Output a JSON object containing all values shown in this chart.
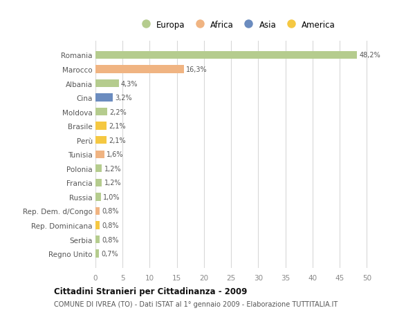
{
  "countries": [
    "Romania",
    "Marocco",
    "Albania",
    "Cina",
    "Moldova",
    "Brasile",
    "Perù",
    "Tunisia",
    "Polonia",
    "Francia",
    "Russia",
    "Rep. Dem. d/Congo",
    "Rep. Dominicana",
    "Serbia",
    "Regno Unito"
  ],
  "values": [
    48.2,
    16.3,
    4.3,
    3.2,
    2.2,
    2.1,
    2.1,
    1.6,
    1.2,
    1.2,
    1.0,
    0.8,
    0.8,
    0.8,
    0.7
  ],
  "labels": [
    "48,2%",
    "16,3%",
    "4,3%",
    "3,2%",
    "2,2%",
    "2,1%",
    "2,1%",
    "1,6%",
    "1,2%",
    "1,2%",
    "1,0%",
    "0,8%",
    "0,8%",
    "0,8%",
    "0,7%"
  ],
  "colors": [
    "#b5cc8e",
    "#f0b482",
    "#b5cc8e",
    "#6b8cbf",
    "#b5cc8e",
    "#f5c842",
    "#f5c842",
    "#f0b482",
    "#b5cc8e",
    "#b5cc8e",
    "#b5cc8e",
    "#f0b482",
    "#f5c842",
    "#b5cc8e",
    "#b5cc8e"
  ],
  "legend_labels": [
    "Europa",
    "Africa",
    "Asia",
    "America"
  ],
  "legend_colors": [
    "#b5cc8e",
    "#f0b482",
    "#6b8cbf",
    "#f5c842"
  ],
  "title": "Cittadini Stranieri per Cittadinanza - 2009",
  "subtitle": "COMUNE DI IVREA (TO) - Dati ISTAT al 1° gennaio 2009 - Elaborazione TUTTITALIA.IT",
  "xlim": [
    0,
    52
  ],
  "xticks": [
    0,
    5,
    10,
    15,
    20,
    25,
    30,
    35,
    40,
    45,
    50
  ],
  "background_color": "#ffffff",
  "grid_color": "#d8d8d8"
}
